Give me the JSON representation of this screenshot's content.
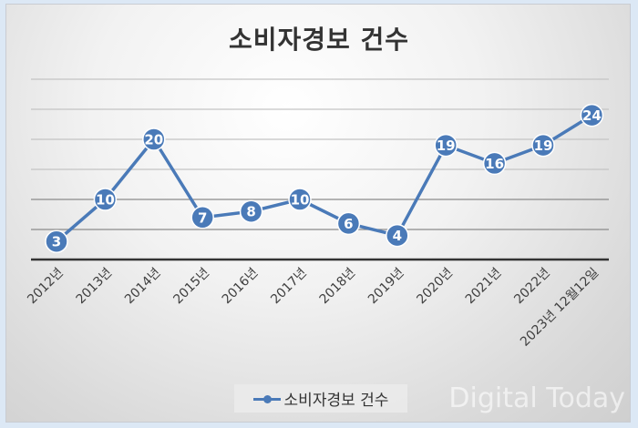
{
  "chart_data": {
    "type": "line",
    "title": "소비자경보 건수",
    "categories": [
      "2012년",
      "2013년",
      "2014년",
      "2015년",
      "2016년",
      "2017년",
      "2018년",
      "2019년",
      "2020년",
      "2021년",
      "2022년",
      "2023년 12월12일"
    ],
    "series": [
      {
        "name": "소비자경보 건수",
        "values": [
          3,
          10,
          20,
          7,
          8,
          10,
          6,
          4,
          19,
          16,
          19,
          24
        ],
        "color": "#4a7ab8"
      }
    ],
    "xlabel": "",
    "ylabel": "",
    "ylim": [
      0,
      30
    ],
    "grid": true,
    "gridlines": [
      5,
      10,
      15,
      20,
      25,
      30
    ],
    "data_labels": true,
    "legend_position": "bottom"
  },
  "legend": {
    "label": "소비자경보 건수"
  },
  "watermark": "Digital Today"
}
